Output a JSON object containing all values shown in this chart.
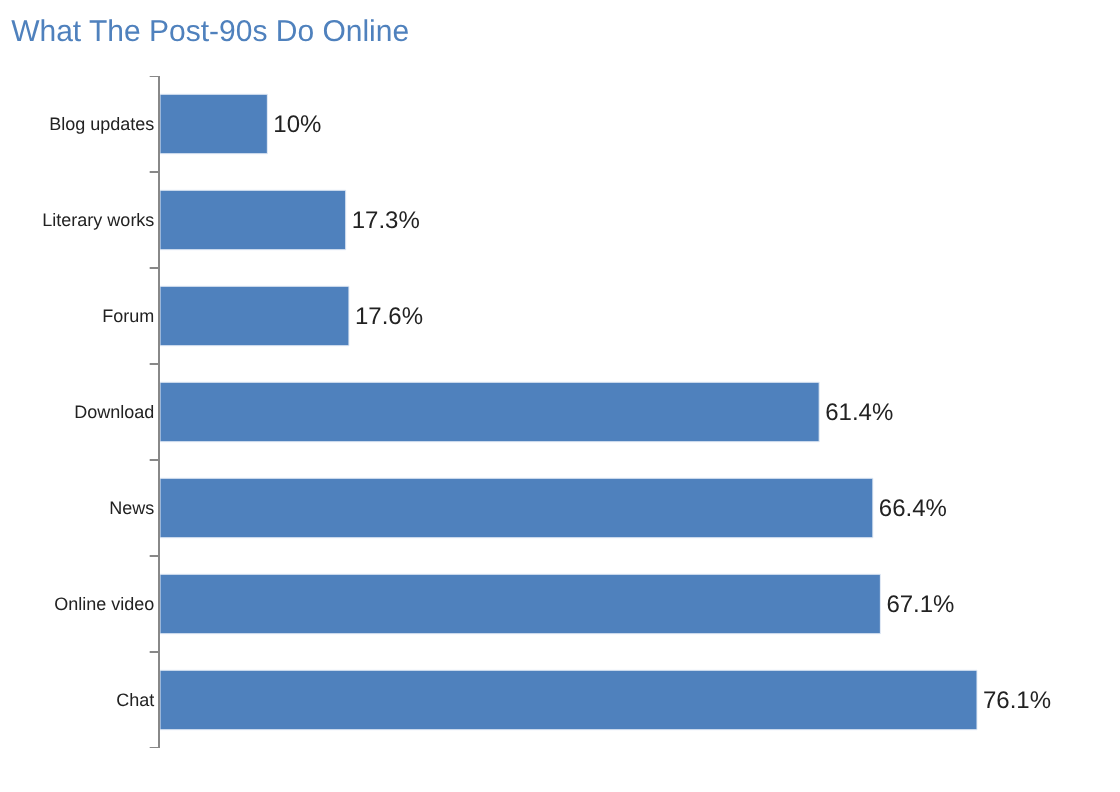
{
  "chart_data": {
    "type": "bar",
    "orientation": "horizontal",
    "title": "What The Post-90s Do Online",
    "categories": [
      "Blog updates",
      "Literary works",
      "Forum",
      "Download",
      "News",
      "Online video",
      "Chat"
    ],
    "values": [
      10,
      17.3,
      17.6,
      61.4,
      66.4,
      67.1,
      76.1
    ],
    "value_labels": [
      "10%",
      "17.3%",
      "17.6%",
      "61.4%",
      "66.4%",
      "67.1%",
      "76.1%"
    ],
    "color": "#4f81bd"
  }
}
